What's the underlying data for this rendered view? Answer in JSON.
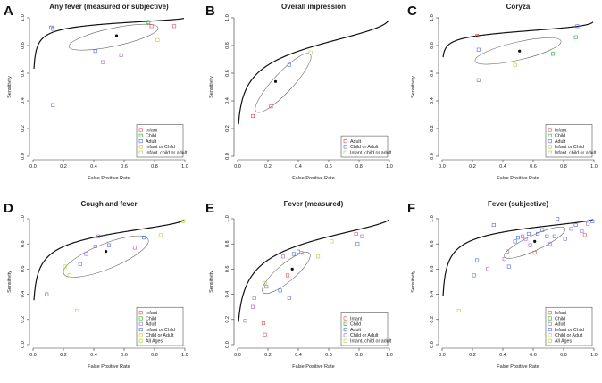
{
  "figure": {
    "xlabel": "False Positive Rate",
    "ylabel": "Sensitivity",
    "ticks": [
      "0.0",
      "0.2",
      "0.4",
      "0.6",
      "0.8",
      "1.0"
    ],
    "colors": {
      "red": "#e8494d",
      "green": "#1bb31b",
      "blue": "#4b6be8",
      "purple": "#a264e0",
      "lime": "#aed23a",
      "yellow": "#d2c227",
      "curve": "#111111",
      "ellipse": "#666666"
    }
  },
  "chart_data": [
    {
      "type": "scatter",
      "label": "A",
      "title": "Any fever (measured or subjective)",
      "xlim": [
        0,
        1
      ],
      "ylim": [
        0,
        1
      ],
      "legend": [
        {
          "name": "Infant",
          "color": "red"
        },
        {
          "name": "Child",
          "color": "green"
        },
        {
          "name": "Adult",
          "color": "blue"
        },
        {
          "name": "Infant or Child",
          "color": "yellow"
        },
        {
          "name": "Infant, child or adult",
          "color": "lime"
        }
      ],
      "curve": {
        "a": 3.1,
        "b": 0.5
      },
      "summary": [
        0.55,
        0.87
      ],
      "ellipse": {
        "cx": 0.53,
        "cy": 0.86,
        "rx": 0.3,
        "ry": 0.065,
        "rot": -12
      },
      "points": [
        {
          "x": 0.12,
          "y": 0.93,
          "c": "red"
        },
        {
          "x": 0.12,
          "y": 0.93,
          "c": "blue"
        },
        {
          "x": 0.13,
          "y": 0.92,
          "c": "blue"
        },
        {
          "x": 0.13,
          "y": 0.37,
          "c": "blue"
        },
        {
          "x": 0.41,
          "y": 0.76,
          "c": "blue"
        },
        {
          "x": 0.46,
          "y": 0.68,
          "c": "purple"
        },
        {
          "x": 0.58,
          "y": 0.73,
          "c": "purple"
        },
        {
          "x": 0.76,
          "y": 0.97,
          "c": "green"
        },
        {
          "x": 0.78,
          "y": 0.94,
          "c": "red"
        },
        {
          "x": 0.82,
          "y": 0.84,
          "c": "yellow"
        },
        {
          "x": 0.93,
          "y": 0.94,
          "c": "red"
        }
      ]
    },
    {
      "type": "scatter",
      "label": "B",
      "title": "Overall impression",
      "xlim": [
        0,
        1
      ],
      "ylim": [
        0,
        1
      ],
      "legend": [
        {
          "name": "Adult",
          "color": "red"
        },
        {
          "name": "Child or Adult",
          "color": "blue"
        },
        {
          "name": "Infant, child or adult",
          "color": "lime"
        }
      ],
      "curve": {
        "a": 1.35,
        "b": 0.5
      },
      "summary": [
        0.25,
        0.54
      ],
      "ellipse": {
        "cx": 0.3,
        "cy": 0.53,
        "rx": 0.26,
        "ry": 0.07,
        "rot": -47
      },
      "points": [
        {
          "x": 0.1,
          "y": 0.29,
          "c": "red"
        },
        {
          "x": 0.22,
          "y": 0.36,
          "c": "red"
        },
        {
          "x": 0.34,
          "y": 0.66,
          "c": "blue"
        },
        {
          "x": 0.48,
          "y": 0.75,
          "c": "lime"
        }
      ]
    },
    {
      "type": "scatter",
      "label": "C",
      "title": "Coryza",
      "xlim": [
        0,
        1
      ],
      "ylim": [
        0,
        1
      ],
      "legend": [
        {
          "name": "Infant",
          "color": "red"
        },
        {
          "name": "Child",
          "color": "green"
        },
        {
          "name": "Adult",
          "color": "blue"
        },
        {
          "name": "Infant or Child",
          "color": "yellow"
        },
        {
          "name": "Infant, child or adult",
          "color": "lime"
        }
      ],
      "curve": {
        "a": 2.2,
        "b": 0.25
      },
      "summary": [
        0.51,
        0.76
      ],
      "ellipse": {
        "cx": 0.5,
        "cy": 0.76,
        "rx": 0.29,
        "ry": 0.065,
        "rot": -13
      },
      "points": [
        {
          "x": 0.23,
          "y": 0.87,
          "c": "red"
        },
        {
          "x": 0.24,
          "y": 0.77,
          "c": "blue"
        },
        {
          "x": 0.24,
          "y": 0.55,
          "c": "blue"
        },
        {
          "x": 0.48,
          "y": 0.66,
          "c": "lime"
        },
        {
          "x": 0.73,
          "y": 0.74,
          "c": "green"
        },
        {
          "x": 0.88,
          "y": 0.86,
          "c": "green"
        },
        {
          "x": 0.89,
          "y": 0.94,
          "c": "blue"
        }
      ]
    },
    {
      "type": "scatter",
      "label": "D",
      "title": "Cough and fever",
      "xlim": [
        0,
        1
      ],
      "ylim": [
        0,
        1
      ],
      "legend": [
        {
          "name": "Infant",
          "color": "red"
        },
        {
          "name": "Child",
          "color": "green"
        },
        {
          "name": "Adult",
          "color": "purple"
        },
        {
          "name": "Infant or Child",
          "color": "blue"
        },
        {
          "name": "Child or Adult",
          "color": "yellow"
        },
        {
          "name": "All Ages",
          "color": "lime"
        }
      ],
      "curve": {
        "a": 1.95,
        "b": 0.5
      },
      "summary": [
        0.48,
        0.74
      ],
      "ellipse": {
        "cx": 0.48,
        "cy": 0.7,
        "rx": 0.3,
        "ry": 0.1,
        "rot": -22
      },
      "points": [
        {
          "x": 0.09,
          "y": 0.4,
          "c": "blue"
        },
        {
          "x": 0.21,
          "y": 0.62,
          "c": "lime"
        },
        {
          "x": 0.24,
          "y": 0.55,
          "c": "lime"
        },
        {
          "x": 0.29,
          "y": 0.27,
          "c": "lime"
        },
        {
          "x": 0.31,
          "y": 0.64,
          "c": "blue"
        },
        {
          "x": 0.35,
          "y": 0.72,
          "c": "purple"
        },
        {
          "x": 0.41,
          "y": 0.78,
          "c": "purple"
        },
        {
          "x": 0.43,
          "y": 0.86,
          "c": "purple"
        },
        {
          "x": 0.5,
          "y": 0.79,
          "c": "blue"
        },
        {
          "x": 0.67,
          "y": 0.77,
          "c": "purple"
        },
        {
          "x": 0.73,
          "y": 0.85,
          "c": "blue"
        },
        {
          "x": 0.84,
          "y": 0.87,
          "c": "lime"
        },
        {
          "x": 0.99,
          "y": 0.98,
          "c": "lime"
        }
      ]
    },
    {
      "type": "scatter",
      "label": "E",
      "title": "Fever (measured)",
      "xlim": [
        0,
        1
      ],
      "ylim": [
        0,
        1
      ],
      "legend": [
        {
          "name": "Infant",
          "color": "red"
        },
        {
          "name": "Child",
          "color": "green"
        },
        {
          "name": "Adult",
          "color": "blue"
        },
        {
          "name": "Child or Adult",
          "color": "purple"
        },
        {
          "name": "Infant, child or adult",
          "color": "lime"
        }
      ],
      "curve": {
        "a": 1.55,
        "b": 0.6
      },
      "summary": [
        0.36,
        0.6
      ],
      "ellipse": {
        "cx": 0.32,
        "cy": 0.57,
        "rx": 0.2,
        "ry": 0.07,
        "rot": -40
      },
      "points": [
        {
          "x": 0.05,
          "y": 0.19,
          "c": "purple"
        },
        {
          "x": 0.1,
          "y": 0.3,
          "c": "purple"
        },
        {
          "x": 0.11,
          "y": 0.37,
          "c": "purple"
        },
        {
          "x": 0.17,
          "y": 0.17,
          "c": "red"
        },
        {
          "x": 0.18,
          "y": 0.08,
          "c": "red"
        },
        {
          "x": 0.18,
          "y": 0.49,
          "c": "lime"
        },
        {
          "x": 0.19,
          "y": 0.46,
          "c": "purple"
        },
        {
          "x": 0.28,
          "y": 0.43,
          "c": "blue"
        },
        {
          "x": 0.3,
          "y": 0.7,
          "c": "purple"
        },
        {
          "x": 0.33,
          "y": 0.55,
          "c": "red"
        },
        {
          "x": 0.34,
          "y": 0.37,
          "c": "blue"
        },
        {
          "x": 0.37,
          "y": 0.72,
          "c": "blue"
        },
        {
          "x": 0.4,
          "y": 0.74,
          "c": "blue"
        },
        {
          "x": 0.42,
          "y": 0.73,
          "c": "purple"
        },
        {
          "x": 0.53,
          "y": 0.7,
          "c": "lime"
        },
        {
          "x": 0.62,
          "y": 0.82,
          "c": "lime"
        },
        {
          "x": 0.78,
          "y": 0.88,
          "c": "red"
        },
        {
          "x": 0.79,
          "y": 0.8,
          "c": "blue"
        },
        {
          "x": 0.82,
          "y": 0.86,
          "c": "purple"
        }
      ]
    },
    {
      "type": "scatter",
      "label": "F",
      "title": "Fever (subjective)",
      "xlim": [
        0,
        1
      ],
      "ylim": [
        0,
        1
      ],
      "legend": [
        {
          "name": "Infant",
          "color": "red"
        },
        {
          "name": "Child",
          "color": "green"
        },
        {
          "name": "Adult",
          "color": "purple"
        },
        {
          "name": "Infant or Child",
          "color": "blue"
        },
        {
          "name": "Child or Adult",
          "color": "yellow"
        },
        {
          "name": "All Ages",
          "color": "lime"
        }
      ],
      "curve": {
        "a": 2.35,
        "b": 0.55
      },
      "summary": [
        0.61,
        0.82
      ],
      "ellipse": {
        "cx": 0.61,
        "cy": 0.81,
        "rx": 0.22,
        "ry": 0.06,
        "rot": -25
      },
      "points": [
        {
          "x": 0.11,
          "y": 0.27,
          "c": "lime"
        },
        {
          "x": 0.21,
          "y": 0.55,
          "c": "blue"
        },
        {
          "x": 0.23,
          "y": 0.67,
          "c": "blue"
        },
        {
          "x": 0.3,
          "y": 0.6,
          "c": "purple"
        },
        {
          "x": 0.34,
          "y": 0.95,
          "c": "blue"
        },
        {
          "x": 0.41,
          "y": 0.68,
          "c": "purple"
        },
        {
          "x": 0.43,
          "y": 0.74,
          "c": "purple"
        },
        {
          "x": 0.44,
          "y": 0.62,
          "c": "blue"
        },
        {
          "x": 0.48,
          "y": 0.82,
          "c": "blue"
        },
        {
          "x": 0.5,
          "y": 0.85,
          "c": "blue"
        },
        {
          "x": 0.53,
          "y": 0.86,
          "c": "purple"
        },
        {
          "x": 0.55,
          "y": 0.84,
          "c": "purple"
        },
        {
          "x": 0.57,
          "y": 0.88,
          "c": "blue"
        },
        {
          "x": 0.58,
          "y": 0.79,
          "c": "purple"
        },
        {
          "x": 0.61,
          "y": 0.73,
          "c": "red"
        },
        {
          "x": 0.63,
          "y": 0.88,
          "c": "blue"
        },
        {
          "x": 0.66,
          "y": 0.91,
          "c": "blue"
        },
        {
          "x": 0.69,
          "y": 0.86,
          "c": "blue"
        },
        {
          "x": 0.71,
          "y": 0.8,
          "c": "purple"
        },
        {
          "x": 0.74,
          "y": 0.86,
          "c": "blue"
        },
        {
          "x": 0.76,
          "y": 1.0,
          "c": "blue"
        },
        {
          "x": 0.81,
          "y": 0.84,
          "c": "blue"
        },
        {
          "x": 0.85,
          "y": 0.92,
          "c": "purple"
        },
        {
          "x": 0.88,
          "y": 0.95,
          "c": "blue"
        },
        {
          "x": 0.92,
          "y": 0.9,
          "c": "purple"
        },
        {
          "x": 0.94,
          "y": 0.87,
          "c": "red"
        },
        {
          "x": 0.96,
          "y": 0.96,
          "c": "purple"
        },
        {
          "x": 0.99,
          "y": 0.98,
          "c": "blue"
        }
      ]
    }
  ]
}
